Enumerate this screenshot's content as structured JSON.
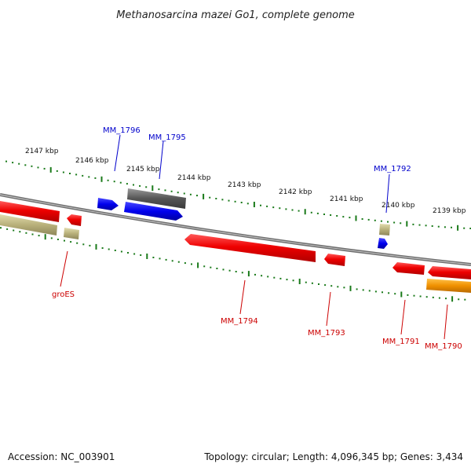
{
  "title": "Methanosarcina mazei Go1, complete genome",
  "footer": {
    "accession": "Accession: NC_003901",
    "summary": "Topology: circular; Length: 4,096,345 bp; Genes: 3,434"
  },
  "colors": {
    "backbone": "#888888",
    "tick": "#1a7a1a",
    "label_blue": "#0000cc",
    "label_red": "#cc0000"
  },
  "kbp_ticks": [
    "2147 kbp",
    "2146 kbp",
    "2145 kbp",
    "2144 kbp",
    "2143 kbp",
    "2142 kbp",
    "2141 kbp",
    "2140 kbp",
    "2139 kbp"
  ],
  "genes": [
    {
      "label": "MM_1796",
      "color": "blue"
    },
    {
      "label": "MM_1795",
      "color": "blue"
    },
    {
      "label": "MM_1792",
      "color": "blue"
    },
    {
      "label": "groES",
      "color": "red"
    },
    {
      "label": "MM_1794",
      "color": "red"
    },
    {
      "label": "MM_1793",
      "color": "red"
    },
    {
      "label": "MM_1791",
      "color": "red"
    },
    {
      "label": "MM_1790",
      "color": "red"
    }
  ]
}
